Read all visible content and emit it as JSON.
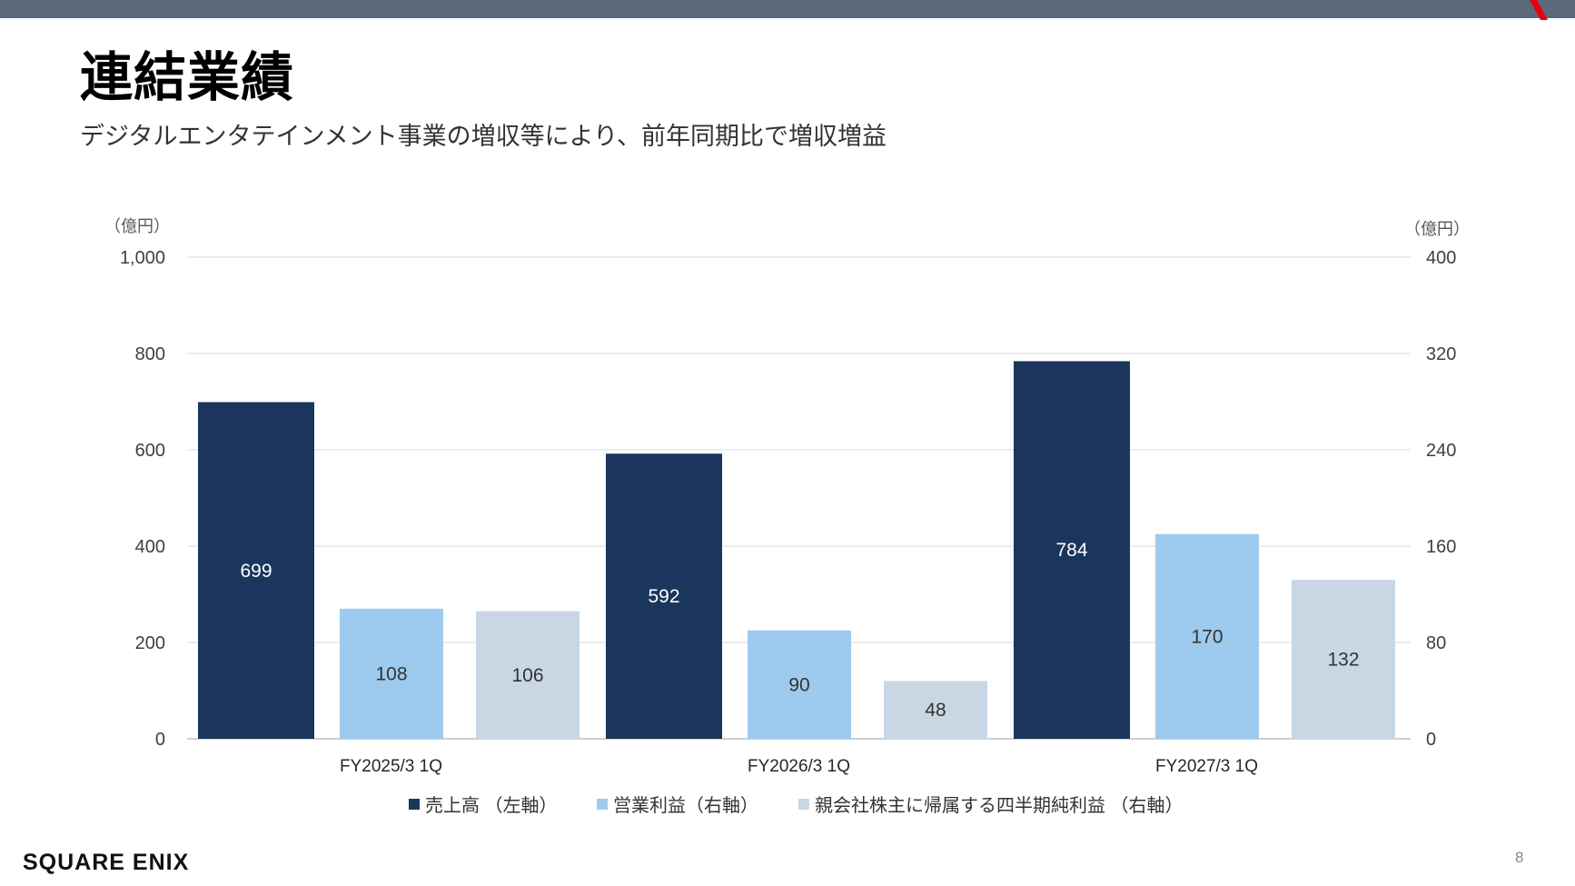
{
  "slide": {
    "title": "連結業績",
    "subtitle": "デジタルエンタテインメント事業の増収等により、前年同期比で増収増益",
    "logo": "SQUARE ENIX",
    "page_number": "8"
  },
  "colors": {
    "sales": "#1b365d",
    "operating_income": "#9dcaee",
    "net_income": "#c8d7e3",
    "top_bar": "#5a6a7a",
    "accent": "#e60012"
  },
  "chart_data": {
    "type": "bar",
    "categories": [
      "FY2025/3 1Q",
      "FY2026/3 1Q",
      "FY2027/3 1Q"
    ],
    "y_left": {
      "unit": "（億円）",
      "range": [
        0,
        1000
      ],
      "ticks": [
        0,
        200,
        400,
        600,
        800,
        1000
      ],
      "tick_labels": [
        "0",
        "200",
        "400",
        "600",
        "800",
        "1,000"
      ]
    },
    "y_right": {
      "unit": "（億円）",
      "range": [
        0,
        400
      ],
      "ticks": [
        0,
        80,
        160,
        240,
        320,
        400
      ],
      "tick_labels": [
        "0",
        "80",
        "160",
        "240",
        "320",
        "400"
      ]
    },
    "series": [
      {
        "name": "売上高 （左軸）",
        "axis": "left",
        "values": [
          699,
          592,
          784
        ]
      },
      {
        "name": "営業利益（右軸）",
        "axis": "right",
        "values": [
          108,
          90,
          170
        ]
      },
      {
        "name": "親会社株主に帰属する四半期純利益 （右軸）",
        "axis": "right",
        "values": [
          106,
          48,
          132
        ]
      }
    ],
    "grid": true,
    "legend": "bottom"
  }
}
